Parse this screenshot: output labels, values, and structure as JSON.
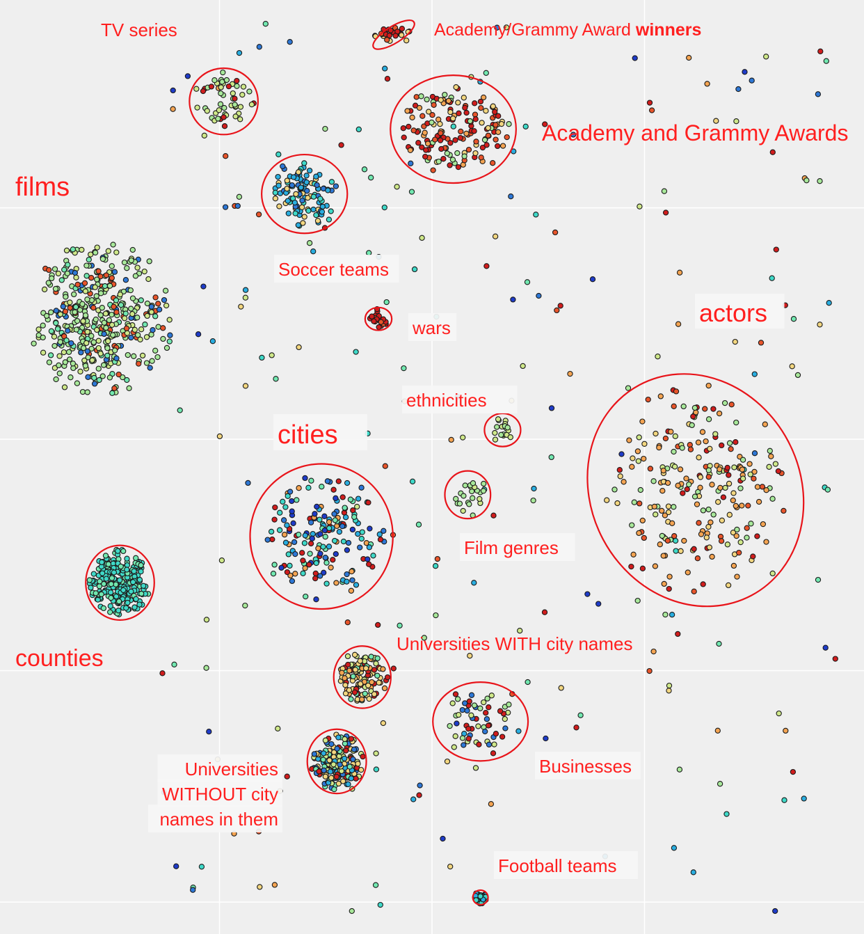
{
  "chart_data": {
    "type": "scatter",
    "title": "",
    "xlabel": "",
    "ylabel": "",
    "grid": true,
    "legend": "none",
    "background_color": "#efefef",
    "gridline_color": "#ffffff",
    "annotation_color": "#ff1f1f",
    "point_palette": [
      "#1f3cc9",
      "#2e78d6",
      "#2aaee0",
      "#3fd9c8",
      "#72e8b0",
      "#a8e89a",
      "#cfe88a",
      "#f2d680",
      "#f4a452",
      "#e8552b",
      "#d11d1d"
    ],
    "xlim": [
      0,
      100
    ],
    "ylim": [
      0,
      100
    ],
    "clusters": [
      {
        "label": "films",
        "center": [
          11,
          66
        ],
        "spread": [
          8.5,
          8.5
        ],
        "count": 420,
        "palette": [
          5,
          6,
          5,
          4,
          5,
          6,
          5,
          9,
          1
        ],
        "circled": false
      },
      {
        "label": "TV series",
        "center": [
          25.5,
          89.5
        ],
        "spread": [
          3.6,
          3.2
        ],
        "count": 50,
        "palette": [
          5,
          6,
          6,
          5,
          10
        ],
        "circled": true
      },
      {
        "label": "Academy/Grammy Award winners",
        "center": [
          45.5,
          96.7
        ],
        "spread": [
          2.5,
          0.8
        ],
        "count": 26,
        "palette": [
          10,
          10,
          9,
          7
        ],
        "circled": true
      },
      {
        "label": "Academy and Grammy Awards",
        "center": [
          52.5,
          86.5
        ],
        "spread": [
          6.6,
          5.2
        ],
        "count": 150,
        "palette": [
          10,
          10,
          9,
          8,
          5,
          7
        ],
        "circled": true
      },
      {
        "label": "Soccer teams",
        "center": [
          35,
          79.5
        ],
        "spread": [
          4.5,
          3.8
        ],
        "count": 110,
        "palette": [
          2,
          2,
          1,
          3,
          7
        ],
        "circled": true
      },
      {
        "label": "wars",
        "center": [
          43.7,
          66
        ],
        "spread": [
          1.4,
          1.1
        ],
        "count": 22,
        "palette": [
          10,
          10,
          9
        ],
        "circled": true
      },
      {
        "label": "ethnicities",
        "center": [
          58.3,
          54
        ],
        "spread": [
          1.9,
          1.6
        ],
        "count": 18,
        "palette": [
          5,
          6
        ],
        "circled": true
      },
      {
        "label": "Film genres",
        "center": [
          54.2,
          47
        ],
        "spread": [
          2.4,
          2.3
        ],
        "count": 22,
        "palette": [
          5,
          6,
          5
        ],
        "circled": true
      },
      {
        "label": "cities",
        "center": [
          37,
          42.5
        ],
        "spread": [
          7.5,
          7
        ],
        "count": 170,
        "palette": [
          0,
          1,
          2,
          3,
          4,
          10,
          8
        ],
        "circled": true
      },
      {
        "label": "actors",
        "center": [
          81,
          47.5
        ],
        "spread": [
          11,
          11.5
        ],
        "count": 220,
        "palette": [
          8,
          8,
          7,
          10,
          5,
          6,
          9
        ],
        "circled": true
      },
      {
        "label": "counties",
        "center": [
          13.3,
          37.5
        ],
        "spread": [
          3.6,
          3.6
        ],
        "count": 260,
        "palette": [
          3,
          4,
          3
        ],
        "circled": true
      },
      {
        "label": "Universities WITH city names",
        "center": [
          41.8,
          27.3
        ],
        "spread": [
          3,
          3
        ],
        "count": 120,
        "palette": [
          7,
          7,
          6,
          8,
          10,
          4
        ],
        "circled": true
      },
      {
        "label": "Universities WITHOUT city names in them",
        "center": [
          38.8,
          18.2
        ],
        "spread": [
          3.1,
          3.1
        ],
        "count": 190,
        "palette": [
          7,
          7,
          6,
          1,
          2,
          10,
          4
        ],
        "circled": true
      },
      {
        "label": "Businesses",
        "center": [
          55.7,
          22.5
        ],
        "spread": [
          5,
          3.8
        ],
        "count": 55,
        "palette": [
          5,
          6,
          10,
          1
        ],
        "circled": true
      },
      {
        "label": "Football teams",
        "center": [
          55.7,
          3.5
        ],
        "spread": [
          0.8,
          0.7
        ],
        "count": 30,
        "palette": [
          2,
          3
        ],
        "circled": true
      }
    ],
    "annotations": [
      {
        "text": "films"
      },
      {
        "text": "TV series"
      },
      {
        "text": "Academy/Grammy Award ",
        "bold_suffix": "winners"
      },
      {
        "text": "Academy and Grammy Awards"
      },
      {
        "text": "Soccer teams"
      },
      {
        "text": "wars"
      },
      {
        "text": "ethnicities"
      },
      {
        "text": "cities"
      },
      {
        "text": "actors"
      },
      {
        "text": "Film genres"
      },
      {
        "text": "counties"
      },
      {
        "text": "Universities WITH city names"
      },
      {
        "text": "Universities"
      },
      {
        "text": "WITHOUT city"
      },
      {
        "text": "names in them"
      },
      {
        "text": "Businesses"
      },
      {
        "text": "Football teams"
      }
    ],
    "scattered_points_count": 230
  }
}
